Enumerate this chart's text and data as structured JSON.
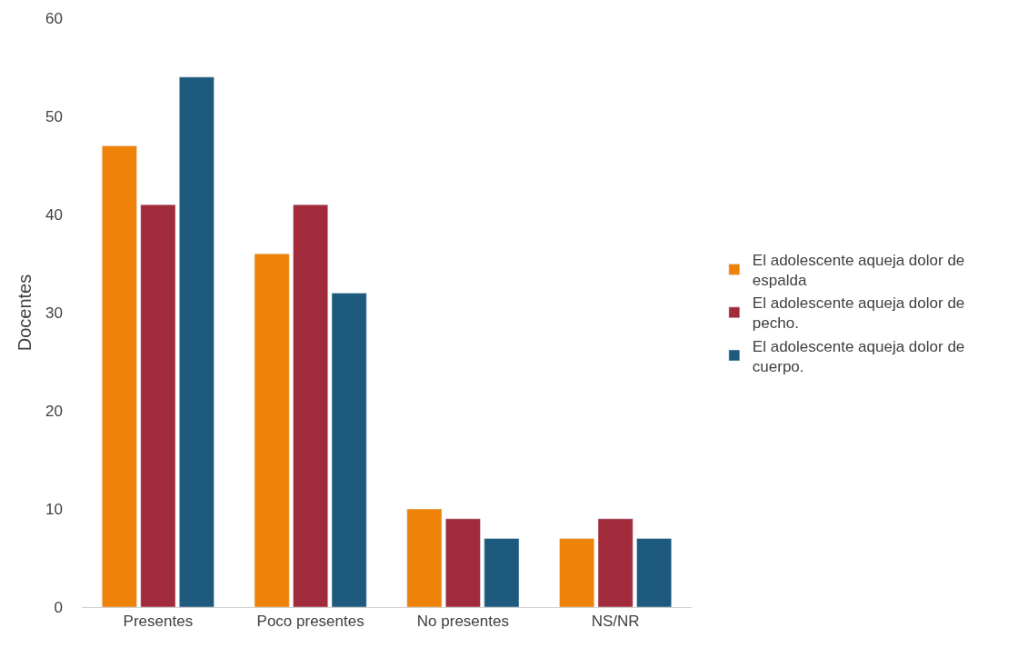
{
  "chart_data": {
    "type": "bar",
    "ylabel": "Docentes",
    "categories": [
      "Presentes",
      "Poco presentes",
      "No presentes",
      "NS/NR"
    ],
    "series": [
      {
        "name": "El adolescente aqueja dolor de espalda",
        "color": "#ef8209",
        "values": [
          47,
          36,
          10,
          7
        ]
      },
      {
        "name": "El adolescente aqueja dolor de pecho.",
        "color": "#a12a3b",
        "values": [
          41,
          41,
          9,
          9
        ]
      },
      {
        "name": "El adolescente aqueja dolor de cuerpo.",
        "color": "#1e5a7e",
        "values": [
          54,
          32,
          7,
          7
        ]
      }
    ],
    "ylim": [
      0,
      60
    ],
    "yticks": [
      0,
      10,
      20,
      30,
      40,
      50,
      60
    ],
    "grid": false,
    "legend": "right"
  }
}
